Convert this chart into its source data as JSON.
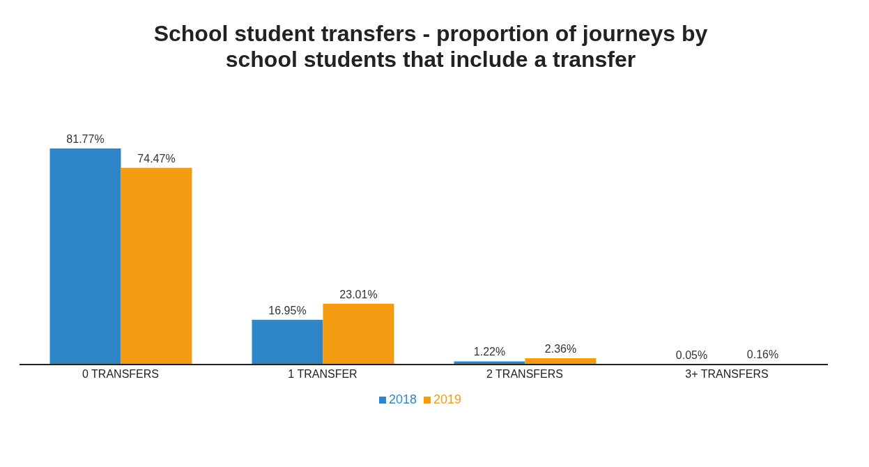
{
  "chart_data": {
    "type": "bar",
    "title": "School student transfers - proportion of journeys by school students that include a transfer",
    "categories": [
      "0 TRANSFERS",
      "1 TRANSFER",
      "2 TRANSFERS",
      "3+ TRANSFERS"
    ],
    "series": [
      {
        "name": "2018",
        "color": "#2e86c8",
        "values": [
          81.77,
          16.95,
          1.22,
          0.05
        ],
        "value_labels": [
          "81.77%",
          "16.95%",
          "1.22%",
          "0.05%"
        ]
      },
      {
        "name": "2019",
        "color": "#f39c12",
        "values": [
          74.47,
          23.01,
          2.36,
          0.16
        ],
        "value_labels": [
          "74.47%",
          "23.01%",
          "2.36%",
          "0.16%"
        ]
      }
    ],
    "tick_labels": "x",
    "legend": "bottom"
  }
}
